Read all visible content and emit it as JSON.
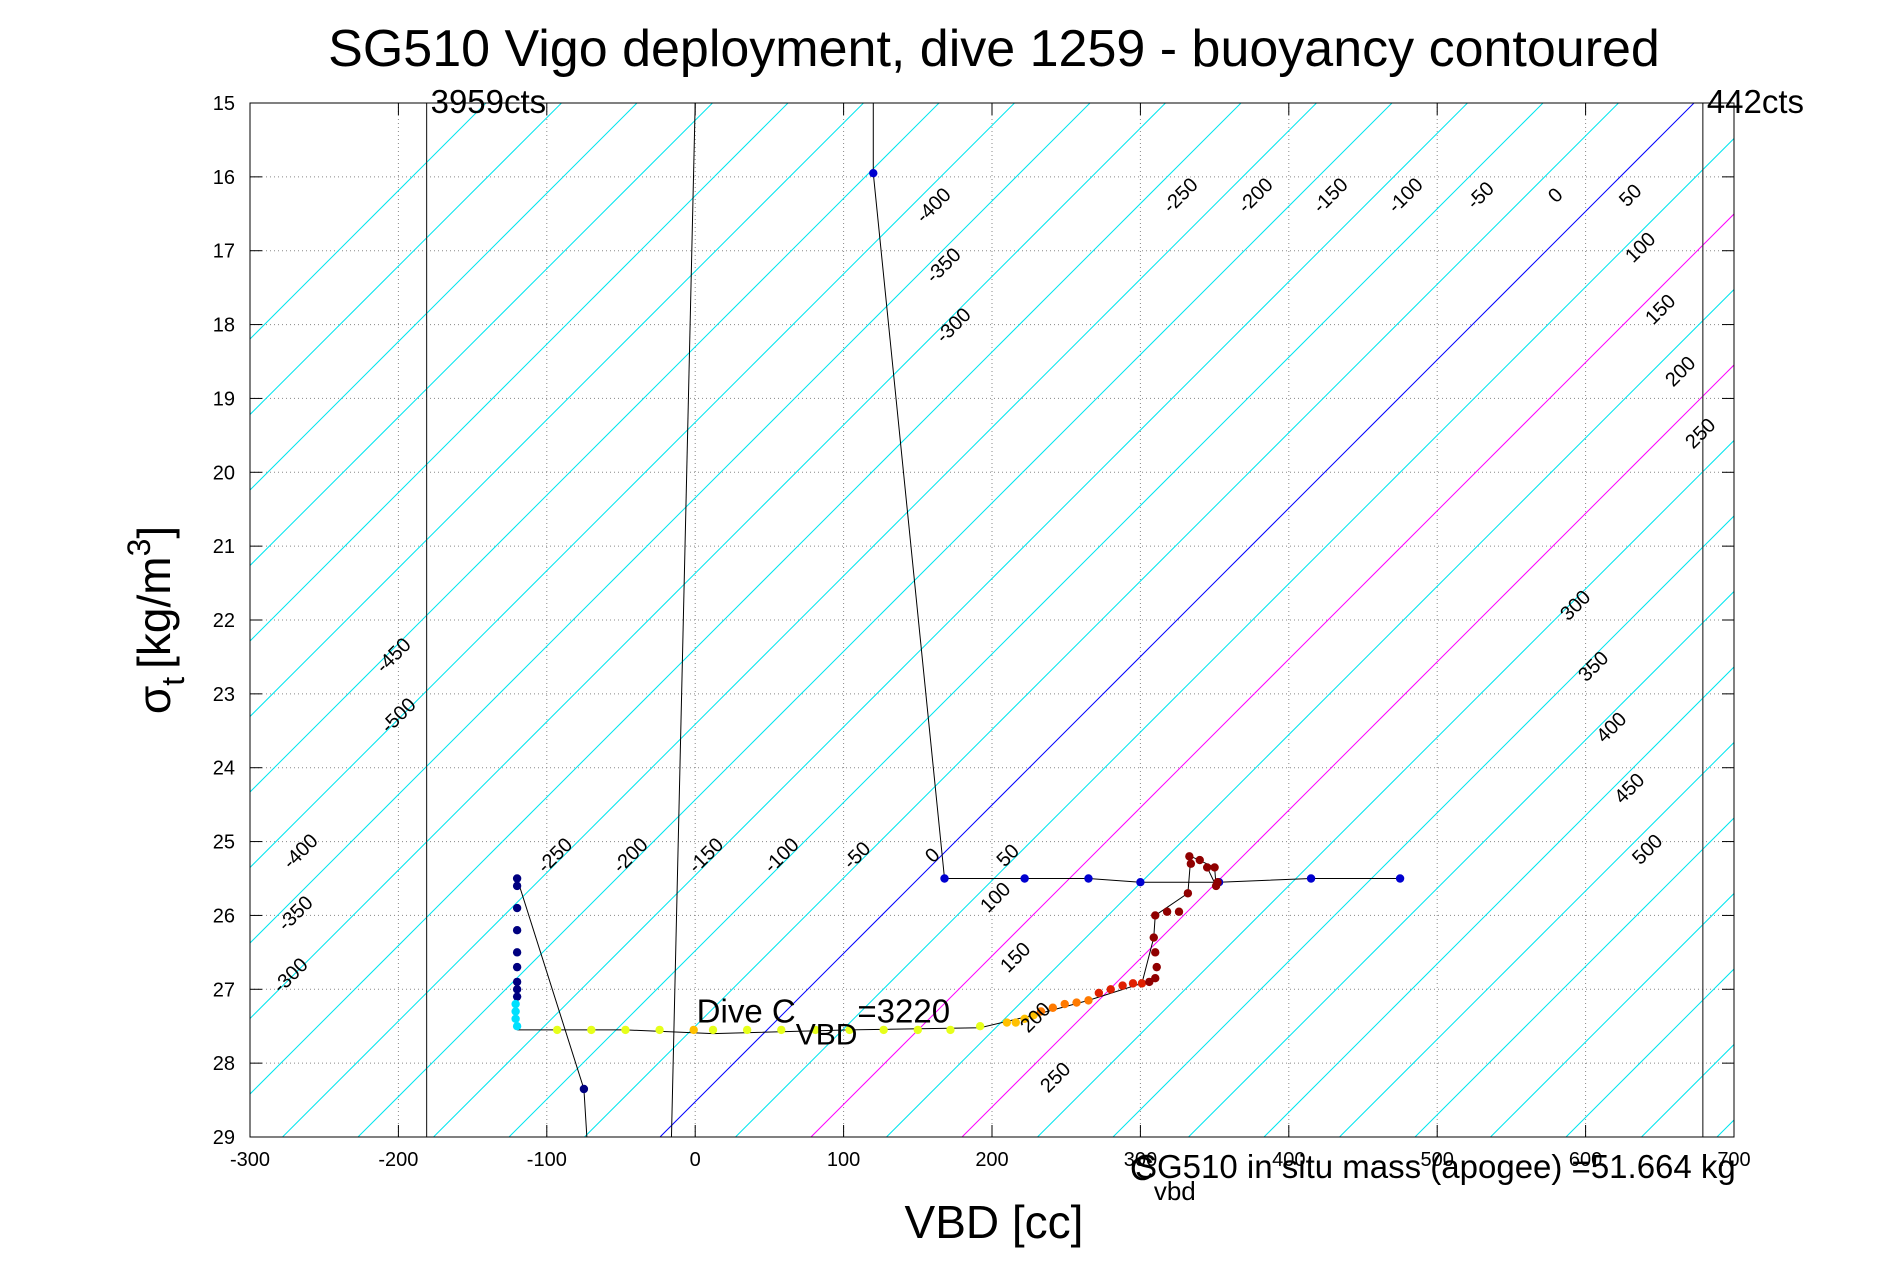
{
  "chart_data": {
    "type": "scatter",
    "title": "SG510 Vigo deployment, dive 1259 - buoyancy contoured",
    "xlabel": "VBD [cc]",
    "ylabel": "σ",
    "ylabel_sub": "t",
    "ylabel_unit": "[kg/m",
    "ylabel_sup": "3",
    "ylabel_close": "]",
    "xlim": [
      -300,
      700
    ],
    "ylim": [
      15,
      29
    ],
    "y_reversed": true,
    "grid": true,
    "x_ticks": [
      -300,
      -200,
      -100,
      0,
      100,
      200,
      300,
      400,
      500,
      600,
      700
    ],
    "y_ticks": [
      15,
      16,
      17,
      18,
      19,
      20,
      21,
      22,
      23,
      24,
      25,
      26,
      27,
      28,
      29
    ],
    "vbd_limit_lines": [
      {
        "x": -181,
        "label": "3959cts"
      },
      {
        "x": 679,
        "label": "442cts"
      }
    ],
    "annotation": {
      "text": "Dive C",
      "sub": "VBD",
      "rest": "=3220",
      "x": 1,
      "y": 27.45
    },
    "overlap_text": [
      {
        "text": "SG510 in situ mass (apogee) =51.664 kg",
        "x": 300,
        "y": 29.8
      },
      {
        "text": "C",
        "sub": "vbd",
        "x": 300,
        "y": 29.8
      }
    ],
    "buoyancy_contours": {
      "cyan": [
        -500,
        -450,
        -400,
        -350,
        -300,
        -250,
        -200,
        -150,
        -100,
        -50,
        300,
        350,
        400,
        450,
        500
      ],
      "blue": [
        0
      ],
      "magenta": [
        100,
        200
      ],
      "labels_upper": [
        -400,
        -350,
        -300,
        -250,
        -200,
        -150,
        -100,
        -50,
        0,
        50,
        100,
        150,
        200,
        250
      ],
      "labels_lower": [
        -500,
        -450,
        -400,
        -350,
        -300,
        -250,
        -200,
        -150,
        -100,
        -50,
        0,
        50,
        100,
        150,
        200,
        250,
        300,
        350,
        400,
        450,
        500
      ]
    },
    "series": [
      {
        "name": "",
        "color": "#0000d0",
        "x": [
          120,
          168,
          222,
          265,
          300,
          353,
          415,
          475
        ],
        "y": [
          15.95,
          25.5,
          25.5,
          25.5,
          25.55,
          25.55,
          25.5,
          25.5
        ]
      },
      {
        "name": "",
        "color": "#000080",
        "x": [
          -120,
          -120,
          -120,
          -120,
          -120,
          -120,
          -120,
          -120,
          -120,
          -75
        ],
        "y": [
          25.5,
          25.6,
          25.9,
          26.2,
          26.5,
          26.7,
          26.9,
          27.0,
          27.1,
          28.35
        ]
      },
      {
        "name": "",
        "color": "#00e0ff",
        "x": [
          -121,
          -121,
          -121,
          -120
        ],
        "y": [
          27.2,
          27.3,
          27.4,
          27.5
        ]
      },
      {
        "name": "",
        "color": "#e6ff1a",
        "x": [
          -93,
          -70,
          -47,
          -24,
          12,
          35,
          58,
          81,
          104,
          127,
          150,
          172,
          192
        ],
        "y": [
          27.55,
          27.55,
          27.55,
          27.55,
          27.55,
          27.55,
          27.55,
          27.55,
          27.55,
          27.55,
          27.55,
          27.55,
          27.5
        ]
      },
      {
        "name": "",
        "color": "#ffc000",
        "x": [
          -1,
          210,
          216,
          222,
          228
        ],
        "y": [
          27.55,
          27.45,
          27.45,
          27.4,
          27.35
        ]
      },
      {
        "name": "",
        "color": "#ff7a00",
        "x": [
          233,
          241,
          249,
          257,
          265
        ],
        "y": [
          27.3,
          27.25,
          27.2,
          27.18,
          27.15
        ]
      },
      {
        "name": "",
        "color": "#e02000",
        "x": [
          272,
          280,
          288,
          295,
          301
        ],
        "y": [
          27.05,
          27.0,
          26.95,
          26.92,
          26.92
        ]
      },
      {
        "name": "",
        "color": "#900000",
        "x": [
          306,
          310,
          311,
          310,
          309,
          310,
          318,
          326,
          332,
          334,
          333,
          340,
          350,
          352,
          351,
          345
        ],
        "y": [
          26.9,
          26.85,
          26.7,
          26.5,
          26.3,
          26.0,
          25.95,
          25.95,
          25.7,
          25.3,
          25.2,
          25.25,
          25.35,
          25.55,
          25.6,
          25.35
        ]
      }
    ]
  }
}
